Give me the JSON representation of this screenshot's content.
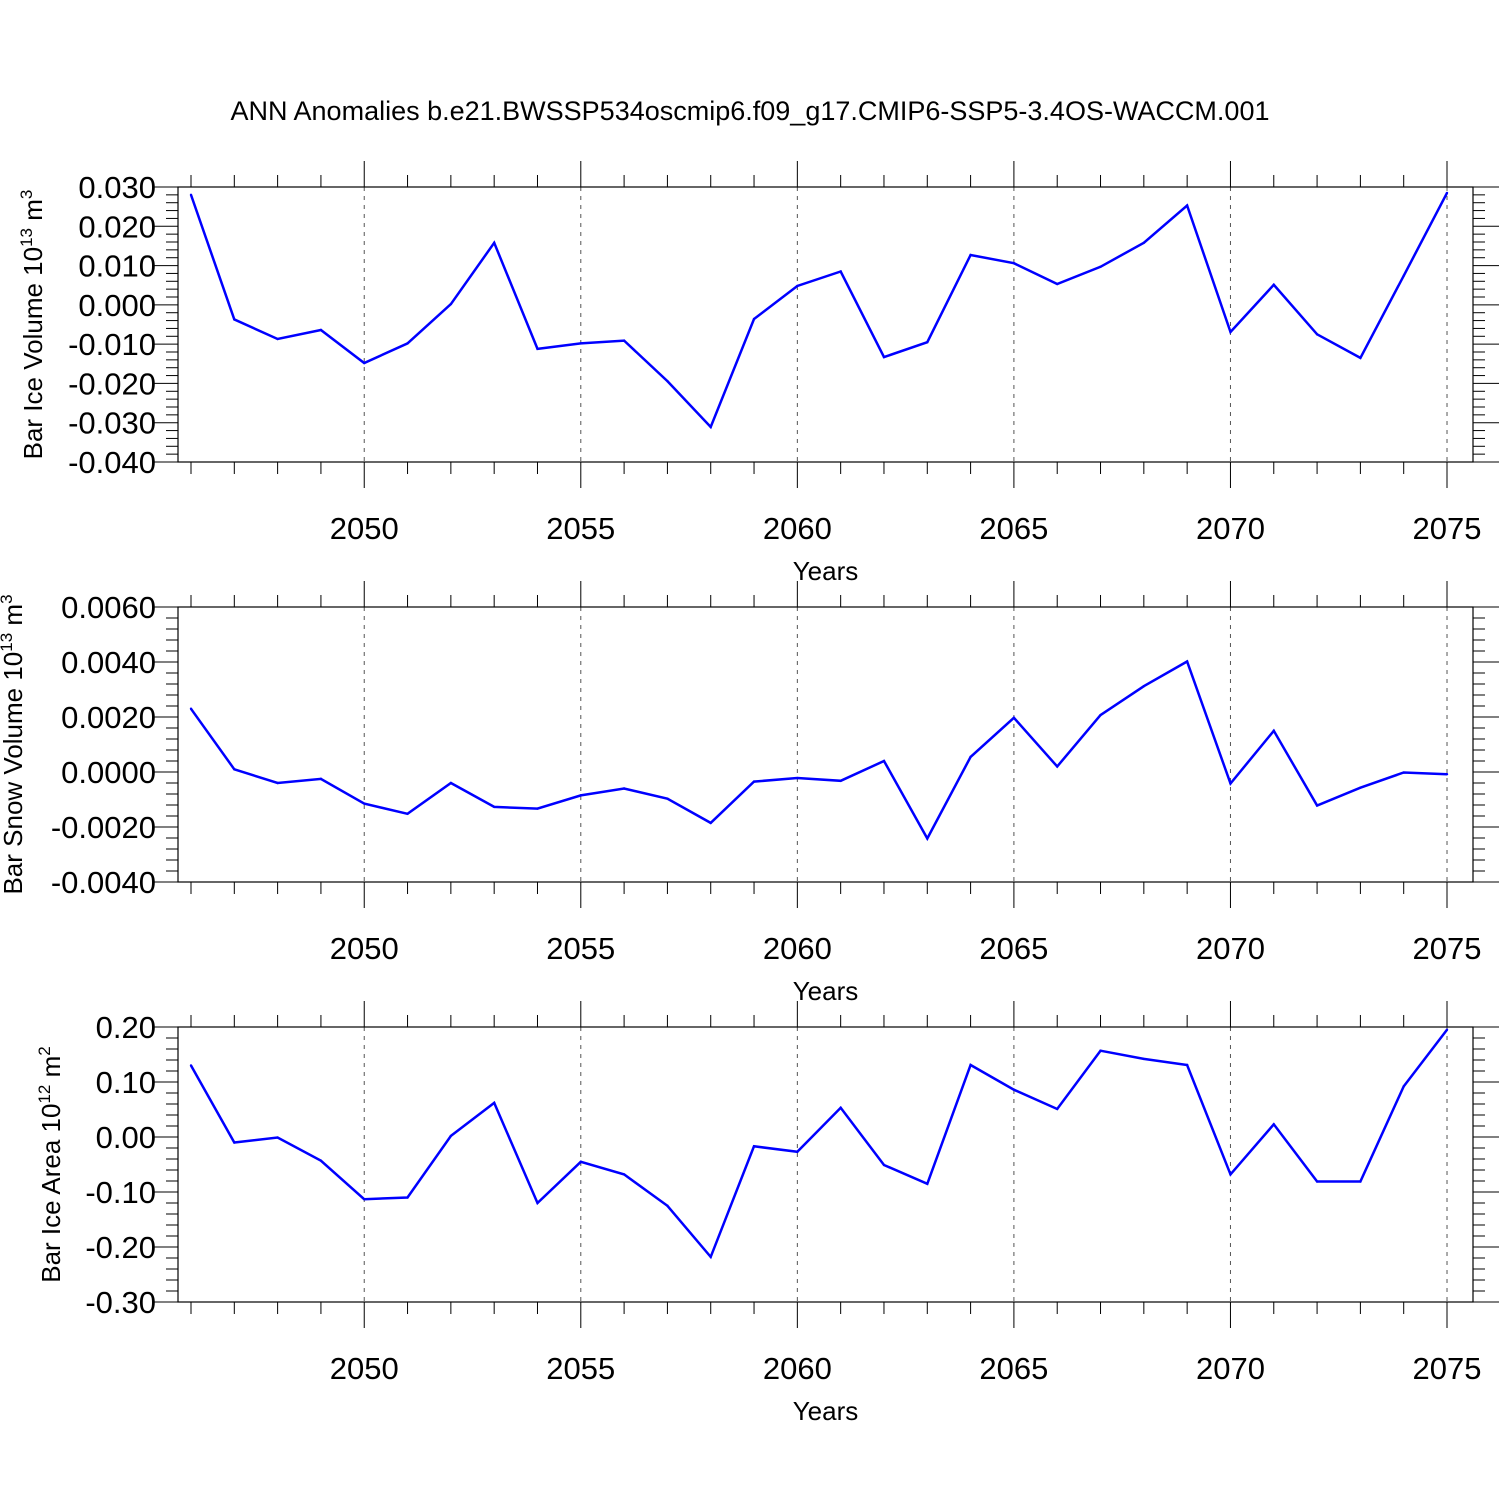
{
  "title": "ANN Anomalies b.e21.BWSSP534oscmip6.f09_g17.CMIP6-SSP5-3.4OS-WACCM.001",
  "colors": {
    "line": "#0000ff",
    "axis": "#000000",
    "grid": "#555555"
  },
  "chart_data": [
    {
      "type": "line",
      "ylabel_main": "Bar Ice Volume 10",
      "ylabel_exp": "13",
      "ylabel_unit": " m",
      "ylabel_unit_exp": "3",
      "xlabel": "Years",
      "xlim": [
        2045.7,
        2075.6
      ],
      "ylim": [
        -0.04,
        0.03
      ],
      "yticks": [
        -0.04,
        -0.03,
        -0.02,
        -0.01,
        0.0,
        0.01,
        0.02,
        0.03
      ],
      "ytick_labels": [
        "-0.040",
        "-0.030",
        "-0.020",
        "-0.010",
        "0.000",
        "0.010",
        "0.020",
        "0.030"
      ],
      "xticks": [
        2050,
        2055,
        2060,
        2065,
        2070,
        2075
      ],
      "xtick_labels": [
        "2050",
        "2055",
        "2060",
        "2065",
        "2070",
        "2075"
      ],
      "grid": "vertical dashed at major x ticks",
      "x": [
        2046,
        2047,
        2048,
        2049,
        2050,
        2051,
        2052,
        2053,
        2054,
        2055,
        2056,
        2057,
        2058,
        2059,
        2060,
        2061,
        2062,
        2063,
        2064,
        2065,
        2066,
        2067,
        2068,
        2069,
        2070,
        2071,
        2072,
        2073,
        2074,
        2075
      ],
      "values": [
        0.028,
        -0.0037,
        -0.0087,
        -0.0064,
        -0.0148,
        -0.0098,
        0.0002,
        0.0158,
        -0.0112,
        -0.0098,
        -0.0091,
        -0.0194,
        -0.0311,
        -0.0036,
        0.0048,
        0.0085,
        -0.0133,
        -0.0095,
        0.0127,
        0.0106,
        0.0053,
        0.0097,
        0.0158,
        0.0253,
        -0.0069,
        0.0051,
        -0.0075,
        -0.0135,
        0.0074,
        0.0285
      ]
    },
    {
      "type": "line",
      "ylabel_main": "Bar Snow Volume 10",
      "ylabel_exp": "13",
      "ylabel_unit": " m",
      "ylabel_unit_exp": "3",
      "xlabel": "Years",
      "xlim": [
        2045.7,
        2075.6
      ],
      "ylim": [
        -0.004,
        0.006
      ],
      "yticks": [
        -0.004,
        -0.002,
        0.0,
        0.002,
        0.004,
        0.006
      ],
      "ytick_labels": [
        "-0.0040",
        "-0.0020",
        "0.0000",
        "0.0020",
        "0.0040",
        "0.0060"
      ],
      "xticks": [
        2050,
        2055,
        2060,
        2065,
        2070,
        2075
      ],
      "xtick_labels": [
        "2050",
        "2055",
        "2060",
        "2065",
        "2070",
        "2075"
      ],
      "grid": "vertical dashed at major x ticks",
      "x": [
        2046,
        2047,
        2048,
        2049,
        2050,
        2051,
        2052,
        2053,
        2054,
        2055,
        2056,
        2057,
        2058,
        2059,
        2060,
        2061,
        2062,
        2063,
        2064,
        2065,
        2066,
        2067,
        2068,
        2069,
        2070,
        2071,
        2072,
        2073,
        2074,
        2075
      ],
      "values": [
        0.0023,
        0.0001,
        -0.0004,
        -0.00025,
        -0.00115,
        -0.00152,
        -0.0004,
        -0.00127,
        -0.00133,
        -0.00085,
        -0.0006,
        -0.00097,
        -0.00185,
        -0.00035,
        -0.00022,
        -0.00032,
        0.0004,
        -0.00242,
        0.00055,
        0.00197,
        0.0002,
        0.00207,
        0.00312,
        0.00402,
        -0.00042,
        0.0015,
        -0.00122,
        -0.00057,
        -2e-05,
        -8e-05
      ]
    },
    {
      "type": "line",
      "ylabel_main": "Bar Ice Area 10",
      "ylabel_exp": "12",
      "ylabel_unit": " m",
      "ylabel_unit_exp": "2",
      "xlabel": "Years",
      "xlim": [
        2045.7,
        2075.6
      ],
      "ylim": [
        -0.3,
        0.2
      ],
      "yticks": [
        -0.3,
        -0.2,
        -0.1,
        0.0,
        0.1,
        0.2
      ],
      "ytick_labels": [
        "-0.30",
        "-0.20",
        "-0.10",
        "0.00",
        "0.10",
        "0.20"
      ],
      "xticks": [
        2050,
        2055,
        2060,
        2065,
        2070,
        2075
      ],
      "xtick_labels": [
        "2050",
        "2055",
        "2060",
        "2065",
        "2070",
        "2075"
      ],
      "grid": "vertical dashed at major x ticks",
      "x": [
        2046,
        2047,
        2048,
        2049,
        2050,
        2051,
        2052,
        2053,
        2054,
        2055,
        2056,
        2057,
        2058,
        2059,
        2060,
        2061,
        2062,
        2063,
        2064,
        2065,
        2066,
        2067,
        2068,
        2069,
        2070,
        2071,
        2072,
        2073,
        2074,
        2075
      ],
      "values": [
        0.13,
        -0.01,
        -0.001,
        -0.043,
        -0.113,
        -0.11,
        0.002,
        0.062,
        -0.12,
        -0.045,
        -0.068,
        -0.125,
        -0.218,
        -0.017,
        -0.027,
        0.053,
        -0.051,
        -0.085,
        0.131,
        0.086,
        0.051,
        0.157,
        0.142,
        0.131,
        -0.068,
        0.023,
        -0.081,
        -0.081,
        0.092,
        0.195
      ]
    }
  ]
}
